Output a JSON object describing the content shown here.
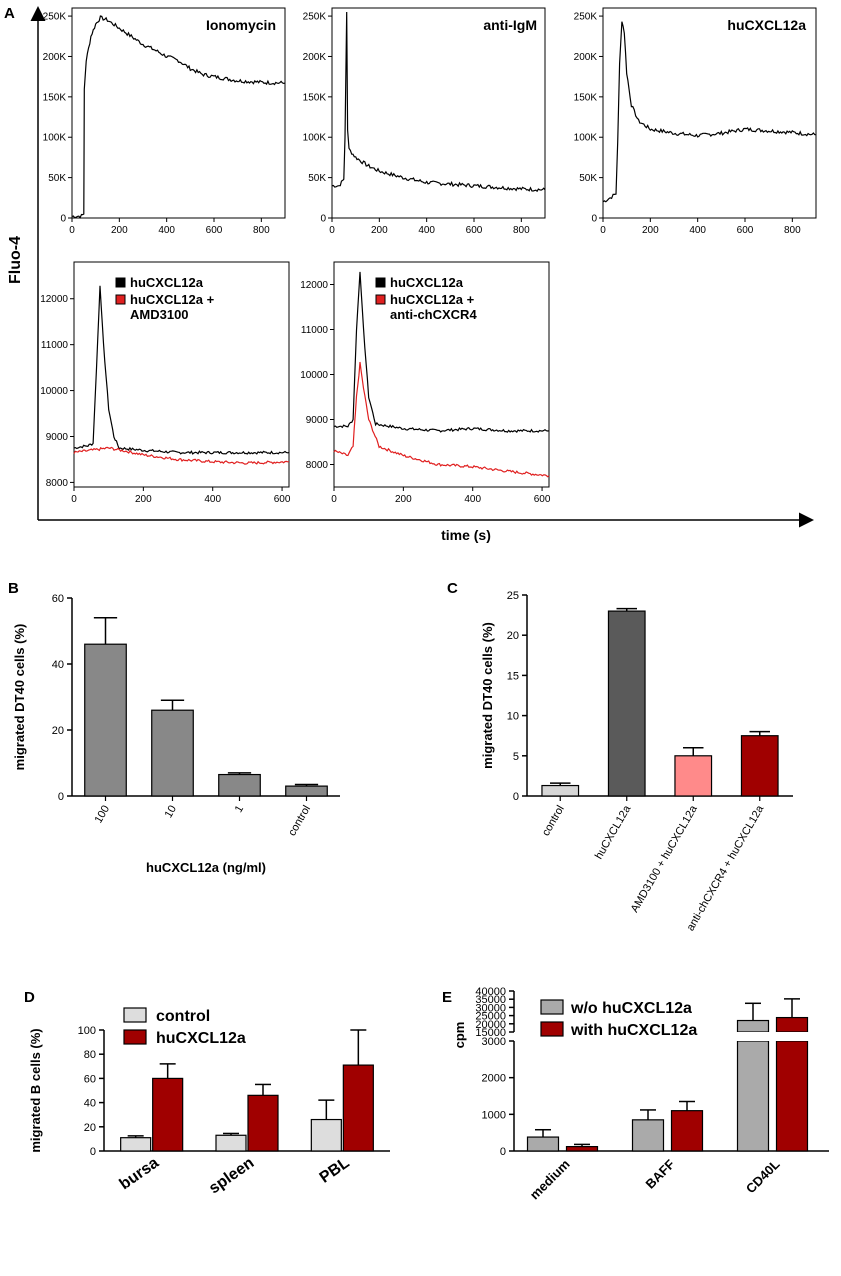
{
  "panels": [
    "A",
    "B",
    "C",
    "D",
    "E"
  ],
  "panel_a": {
    "y_label": "Fluo-4",
    "x_label": "time (s)"
  },
  "chart_data": [
    {
      "id": "ionomycin",
      "type": "line",
      "title": "Ionomycin",
      "xlim": [
        0,
        900
      ],
      "ylim": [
        0,
        260000
      ],
      "x_ticks": [
        0,
        200,
        400,
        600,
        800
      ],
      "y_ticks": [
        0,
        50000,
        100000,
        150000,
        200000,
        250000
      ],
      "y_tick_labels": [
        "0",
        "50K",
        "100K",
        "150K",
        "200K",
        "250K"
      ],
      "series": [
        {
          "name": "Ionomycin",
          "color": "#000000",
          "points": [
            [
              0,
              2000
            ],
            [
              40,
              2500
            ],
            [
              50,
              5000
            ],
            [
              52,
              160000
            ],
            [
              60,
              195000
            ],
            [
              80,
              225000
            ],
            [
              100,
              240000
            ],
            [
              120,
              248000
            ],
            [
              150,
              245000
            ],
            [
              200,
              235000
            ],
            [
              250,
              225000
            ],
            [
              300,
              215000
            ],
            [
              350,
              208000
            ],
            [
              400,
              200000
            ],
            [
              450,
              195000
            ],
            [
              500,
              185000
            ],
            [
              550,
              178000
            ],
            [
              600,
              175000
            ],
            [
              700,
              170000
            ],
            [
              800,
              168000
            ],
            [
              900,
              167000
            ]
          ]
        }
      ]
    },
    {
      "id": "anti_igm",
      "type": "line",
      "title": "anti-IgM",
      "xlim": [
        0,
        900
      ],
      "ylim": [
        0,
        260000
      ],
      "x_ticks": [
        0,
        200,
        400,
        600,
        800
      ],
      "y_ticks": [
        0,
        50000,
        100000,
        150000,
        200000,
        250000
      ],
      "y_tick_labels": [
        "0",
        "50K",
        "100K",
        "150K",
        "200K",
        "250K"
      ],
      "series": [
        {
          "name": "anti-IgM",
          "color": "#000000",
          "points": [
            [
              0,
              40000
            ],
            [
              30,
              40000
            ],
            [
              50,
              48000
            ],
            [
              55,
              100000
            ],
            [
              62,
              255000
            ],
            [
              66,
              110000
            ],
            [
              72,
              85000
            ],
            [
              100,
              75000
            ],
            [
              150,
              65000
            ],
            [
              200,
              58000
            ],
            [
              300,
              50000
            ],
            [
              400,
              44000
            ],
            [
              500,
              42000
            ],
            [
              600,
              40000
            ],
            [
              700,
              38000
            ],
            [
              800,
              36000
            ],
            [
              900,
              35000
            ]
          ]
        }
      ]
    },
    {
      "id": "hucxcl12a_top",
      "type": "line",
      "title": "huCXCL12a",
      "xlim": [
        0,
        900
      ],
      "ylim": [
        0,
        260000
      ],
      "x_ticks": [
        0,
        200,
        400,
        600,
        800
      ],
      "y_ticks": [
        0,
        50000,
        100000,
        150000,
        200000,
        250000
      ],
      "y_tick_labels": [
        "0",
        "50K",
        "100K",
        "150K",
        "200K",
        "250K"
      ],
      "series": [
        {
          "name": "huCXCL12a",
          "color": "#000000",
          "points": [
            [
              0,
              20000
            ],
            [
              30,
              25000
            ],
            [
              55,
              30000
            ],
            [
              62,
              95000
            ],
            [
              70,
              190000
            ],
            [
              80,
              245000
            ],
            [
              90,
              230000
            ],
            [
              100,
              180000
            ],
            [
              120,
              140000
            ],
            [
              150,
              120000
            ],
            [
              200,
              110000
            ],
            [
              300,
              105000
            ],
            [
              400,
              102000
            ],
            [
              500,
              105000
            ],
            [
              600,
              110000
            ],
            [
              700,
              108000
            ],
            [
              800,
              106000
            ],
            [
              900,
              103000
            ]
          ]
        }
      ]
    },
    {
      "id": "amd3100",
      "type": "line",
      "xlim": [
        0,
        620
      ],
      "ylim": [
        7900,
        12800
      ],
      "x_ticks": [
        0,
        200,
        400,
        600
      ],
      "y_ticks": [
        8000,
        9000,
        10000,
        11000,
        12000
      ],
      "y_tick_labels": [
        "8000",
        "9000",
        "10000",
        "11000",
        "12000"
      ],
      "legend": [
        "huCXCL12a",
        "huCXCL12a + AMD3100"
      ],
      "series": [
        {
          "name": "huCXCL12a",
          "color": "#000000",
          "points": [
            [
              0,
              8750
            ],
            [
              40,
              8800
            ],
            [
              55,
              8850
            ],
            [
              65,
              10500
            ],
            [
              75,
              12300
            ],
            [
              85,
              11000
            ],
            [
              100,
              9600
            ],
            [
              115,
              9000
            ],
            [
              130,
              8750
            ],
            [
              200,
              8700
            ],
            [
              300,
              8650
            ],
            [
              400,
              8650
            ],
            [
              500,
              8650
            ],
            [
              620,
              8650
            ]
          ]
        },
        {
          "name": "huCXCL12a + AMD3100",
          "color": "#e02020",
          "points": [
            [
              0,
              8650
            ],
            [
              50,
              8700
            ],
            [
              100,
              8750
            ],
            [
              150,
              8680
            ],
            [
              200,
              8600
            ],
            [
              300,
              8500
            ],
            [
              400,
              8450
            ],
            [
              500,
              8420
            ],
            [
              620,
              8450
            ]
          ]
        }
      ]
    },
    {
      "id": "anti_chcxcr4",
      "type": "line",
      "xlim": [
        0,
        620
      ],
      "ylim": [
        7500,
        12500
      ],
      "x_ticks": [
        0,
        200,
        400,
        600
      ],
      "y_ticks": [
        8000,
        9000,
        10000,
        11000,
        12000
      ],
      "y_tick_labels": [
        "8000",
        "9000",
        "10000",
        "11000",
        "12000"
      ],
      "legend": [
        "huCXCL12a",
        "huCXCL12a + anti-chCXCR4"
      ],
      "series": [
        {
          "name": "huCXCL12a",
          "color": "#000000",
          "points": [
            [
              0,
              8850
            ],
            [
              40,
              8850
            ],
            [
              55,
              9000
            ],
            [
              65,
              11000
            ],
            [
              75,
              12300
            ],
            [
              85,
              11000
            ],
            [
              100,
              9500
            ],
            [
              120,
              8900
            ],
            [
              200,
              8800
            ],
            [
              300,
              8750
            ],
            [
              400,
              8800
            ],
            [
              500,
              8750
            ],
            [
              620,
              8750
            ]
          ]
        },
        {
          "name": "huCXCL12a + anti-chCXCR4",
          "color": "#e02020",
          "points": [
            [
              0,
              8300
            ],
            [
              40,
              8200
            ],
            [
              55,
              8400
            ],
            [
              65,
              9500
            ],
            [
              75,
              10250
            ],
            [
              85,
              9700
            ],
            [
              100,
              9000
            ],
            [
              130,
              8400
            ],
            [
              200,
              8200
            ],
            [
              300,
              8000
            ],
            [
              400,
              7950
            ],
            [
              500,
              7850
            ],
            [
              620,
              7750
            ]
          ]
        }
      ]
    },
    {
      "id": "panel_b",
      "type": "bar",
      "title": "",
      "xlabel": "huCXCL12a (ng/ml)",
      "ylabel": "migrated DT40 cells (%)",
      "categories": [
        "100",
        "10",
        "1",
        "control"
      ],
      "values": [
        46,
        26,
        6.5,
        3
      ],
      "errors": [
        8,
        3,
        0.5,
        0.5
      ],
      "colors": [
        "#888888",
        "#888888",
        "#888888",
        "#888888"
      ],
      "ylim": [
        0,
        60
      ],
      "y_ticks": [
        0,
        20,
        40,
        60
      ]
    },
    {
      "id": "panel_c",
      "type": "bar",
      "title": "",
      "xlabel": "",
      "ylabel": "migrated DT40 cells (%)",
      "categories": [
        "control",
        "huCXCL12a",
        "AMD3100 + huCXCL12a",
        "anti-chCXCR4 + huCXCL12a"
      ],
      "values": [
        1.3,
        23,
        5,
        7.5
      ],
      "errors": [
        0.3,
        0.3,
        1,
        0.5
      ],
      "colors": [
        "#d6d6d6",
        "#5a5a5a",
        "#ff8a8a",
        "#a00000"
      ],
      "ylim": [
        0,
        25
      ],
      "y_ticks": [
        0,
        5,
        10,
        15,
        20,
        25
      ]
    },
    {
      "id": "panel_d",
      "type": "bar",
      "title": "",
      "xlabel": "",
      "ylabel": "migrated B cells (%)",
      "categories": [
        "bursa",
        "spleen",
        "PBL"
      ],
      "series": [
        {
          "name": "control",
          "color": "#dddddd",
          "values": [
            11,
            13,
            26
          ],
          "errors": [
            1.5,
            1.5,
            16
          ]
        },
        {
          "name": "huCXCL12a",
          "color": "#a00000",
          "values": [
            60,
            46,
            71
          ],
          "errors": [
            12,
            9,
            29
          ]
        }
      ],
      "ylim": [
        0,
        100
      ],
      "y_ticks": [
        0,
        20,
        40,
        60,
        80,
        100
      ]
    },
    {
      "id": "panel_e",
      "type": "bar",
      "title": "",
      "xlabel": "",
      "ylabel": "cpm",
      "categories": [
        "medium",
        "BAFF",
        "CD40L"
      ],
      "series": [
        {
          "name": "w/o huCXCL12a",
          "color": "#aaaaaa",
          "values": [
            380,
            850,
            22000
          ],
          "errors": [
            200,
            270,
            10500
          ]
        },
        {
          "name": "with huCXCL12a",
          "color": "#a00000",
          "values": [
            120,
            1100,
            23800
          ],
          "errors": [
            60,
            250,
            11400
          ]
        }
      ],
      "y_break": [
        3000,
        15000
      ],
      "lower_ticks": [
        0,
        1000,
        2000,
        3000
      ],
      "upper_ticks": [
        15000,
        20000,
        25000,
        30000,
        35000,
        40000
      ],
      "ylim": [
        0,
        40000
      ]
    }
  ]
}
